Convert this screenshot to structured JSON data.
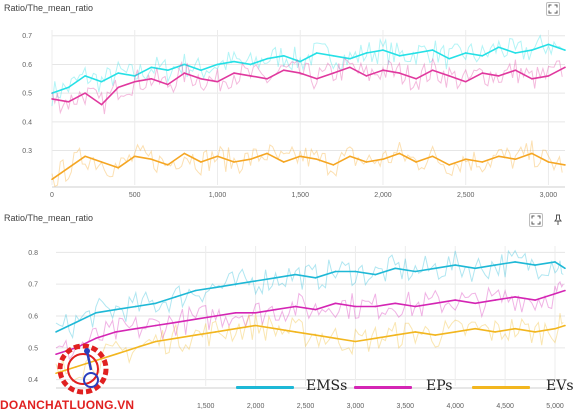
{
  "panels": [
    {
      "title": "Ratio/The_mean_ratio",
      "expand_icon": "fullscreen-icon"
    },
    {
      "title": "Ratio/The_mean_ratio",
      "expand_icon": "fullscreen-icon",
      "pin_icon": "pin-icon"
    }
  ],
  "legend": {
    "items": [
      {
        "label": "EMSs",
        "color": "#1eb8d6"
      },
      {
        "label": "EPs",
        "color": "#d425b4"
      },
      {
        "label": "EVs",
        "color": "#f2b61f"
      }
    ]
  },
  "watermark": {
    "text": "DOANCHATLUONG.VN",
    "logo": "quality-seal-logo"
  },
  "chart_data": [
    {
      "type": "line",
      "title": "Ratio/The_mean_ratio",
      "xlabel": "",
      "ylabel": "",
      "xlim": [
        0,
        3100
      ],
      "ylim": [
        0.18,
        0.72
      ],
      "xticks": [
        "0",
        "500",
        "1,000",
        "1,500",
        "2,000",
        "2,500",
        "3,000"
      ],
      "xtick_values": [
        0,
        500,
        1000,
        1500,
        2000,
        2500,
        3000
      ],
      "yticks": [
        "0.3",
        "0.4",
        "0.5",
        "0.6",
        "0.7"
      ],
      "ytick_values": [
        0.3,
        0.4,
        0.5,
        0.6,
        0.7
      ],
      "grid": true,
      "series": [
        {
          "color": "#25e0e6",
          "x": [
            0,
            100,
            200,
            300,
            400,
            500,
            600,
            700,
            800,
            900,
            1000,
            1100,
            1200,
            1300,
            1400,
            1500,
            1600,
            1700,
            1800,
            1900,
            2000,
            2100,
            2200,
            2300,
            2400,
            2500,
            2600,
            2700,
            2800,
            2900,
            3000,
            3100
          ],
          "y": [
            0.5,
            0.52,
            0.56,
            0.54,
            0.57,
            0.56,
            0.59,
            0.58,
            0.6,
            0.58,
            0.6,
            0.61,
            0.6,
            0.62,
            0.63,
            0.61,
            0.64,
            0.63,
            0.62,
            0.64,
            0.65,
            0.63,
            0.64,
            0.65,
            0.62,
            0.64,
            0.63,
            0.66,
            0.64,
            0.65,
            0.67,
            0.65
          ]
        },
        {
          "color": "#e0389e",
          "x": [
            0,
            100,
            200,
            300,
            400,
            500,
            600,
            700,
            800,
            900,
            1000,
            1100,
            1200,
            1300,
            1400,
            1500,
            1600,
            1700,
            1800,
            1900,
            2000,
            2100,
            2200,
            2300,
            2400,
            2500,
            2600,
            2700,
            2800,
            2900,
            3000,
            3100
          ],
          "y": [
            0.48,
            0.47,
            0.5,
            0.46,
            0.52,
            0.54,
            0.55,
            0.53,
            0.57,
            0.55,
            0.54,
            0.57,
            0.56,
            0.55,
            0.58,
            0.57,
            0.55,
            0.57,
            0.59,
            0.56,
            0.58,
            0.57,
            0.55,
            0.58,
            0.56,
            0.54,
            0.57,
            0.56,
            0.58,
            0.55,
            0.56,
            0.59
          ]
        },
        {
          "color": "#f5a623",
          "x": [
            0,
            100,
            200,
            300,
            400,
            500,
            600,
            700,
            800,
            900,
            1000,
            1100,
            1200,
            1300,
            1400,
            1500,
            1600,
            1700,
            1800,
            1900,
            2000,
            2100,
            2200,
            2300,
            2400,
            2500,
            2600,
            2700,
            2800,
            2900,
            3000,
            3100
          ],
          "y": [
            0.2,
            0.24,
            0.28,
            0.26,
            0.24,
            0.28,
            0.27,
            0.25,
            0.29,
            0.26,
            0.28,
            0.26,
            0.27,
            0.29,
            0.26,
            0.28,
            0.27,
            0.25,
            0.28,
            0.26,
            0.27,
            0.29,
            0.26,
            0.28,
            0.25,
            0.27,
            0.26,
            0.28,
            0.27,
            0.29,
            0.26,
            0.25
          ]
        }
      ]
    },
    {
      "type": "line",
      "title": "Ratio/The_mean_ratio",
      "xlabel": "",
      "ylabel": "",
      "xlim": [
        0,
        5100
      ],
      "ylim": [
        0.38,
        0.82
      ],
      "xticks": [
        "1,500",
        "2,000",
        "2,500",
        "3,000",
        "3,500",
        "4,000",
        "4,500",
        "5,000"
      ],
      "xtick_values": [
        1500,
        2000,
        2500,
        3000,
        3500,
        4000,
        4500,
        5000
      ],
      "yticks": [
        "0.4",
        "0.5",
        "0.6",
        "0.7",
        "0.8"
      ],
      "ytick_values": [
        0.4,
        0.5,
        0.6,
        0.7,
        0.8
      ],
      "grid": true,
      "series": [
        {
          "name": "EMSs",
          "color": "#1eb8d6",
          "x": [
            0,
            200,
            400,
            600,
            800,
            1000,
            1200,
            1400,
            1600,
            1800,
            2000,
            2200,
            2400,
            2600,
            2800,
            3000,
            3200,
            3400,
            3600,
            3800,
            4000,
            4200,
            4400,
            4600,
            4800,
            5000,
            5100
          ],
          "y": [
            0.55,
            0.58,
            0.61,
            0.62,
            0.63,
            0.64,
            0.66,
            0.68,
            0.69,
            0.7,
            0.71,
            0.72,
            0.73,
            0.72,
            0.74,
            0.74,
            0.73,
            0.75,
            0.74,
            0.75,
            0.76,
            0.75,
            0.76,
            0.77,
            0.76,
            0.77,
            0.75
          ]
        },
        {
          "name": "EPs",
          "color": "#d425b4",
          "x": [
            0,
            200,
            400,
            600,
            800,
            1000,
            1200,
            1400,
            1600,
            1800,
            2000,
            2200,
            2400,
            2600,
            2800,
            3000,
            3200,
            3400,
            3600,
            3800,
            4000,
            4200,
            4400,
            4600,
            4800,
            5000,
            5100
          ],
          "y": [
            0.48,
            0.5,
            0.53,
            0.55,
            0.56,
            0.57,
            0.58,
            0.59,
            0.6,
            0.61,
            0.61,
            0.62,
            0.63,
            0.62,
            0.64,
            0.63,
            0.63,
            0.64,
            0.63,
            0.64,
            0.65,
            0.64,
            0.65,
            0.66,
            0.65,
            0.67,
            0.68
          ]
        },
        {
          "name": "EVs",
          "color": "#f2b61f",
          "x": [
            0,
            200,
            400,
            600,
            800,
            1000,
            1200,
            1400,
            1600,
            1800,
            2000,
            2200,
            2400,
            2600,
            2800,
            3000,
            3200,
            3400,
            3600,
            3800,
            4000,
            4200,
            4400,
            4600,
            4800,
            5000,
            5100
          ],
          "y": [
            0.42,
            0.44,
            0.46,
            0.48,
            0.5,
            0.52,
            0.53,
            0.54,
            0.55,
            0.56,
            0.57,
            0.56,
            0.55,
            0.54,
            0.53,
            0.52,
            0.53,
            0.54,
            0.55,
            0.54,
            0.55,
            0.56,
            0.55,
            0.56,
            0.55,
            0.56,
            0.57
          ]
        }
      ]
    }
  ]
}
